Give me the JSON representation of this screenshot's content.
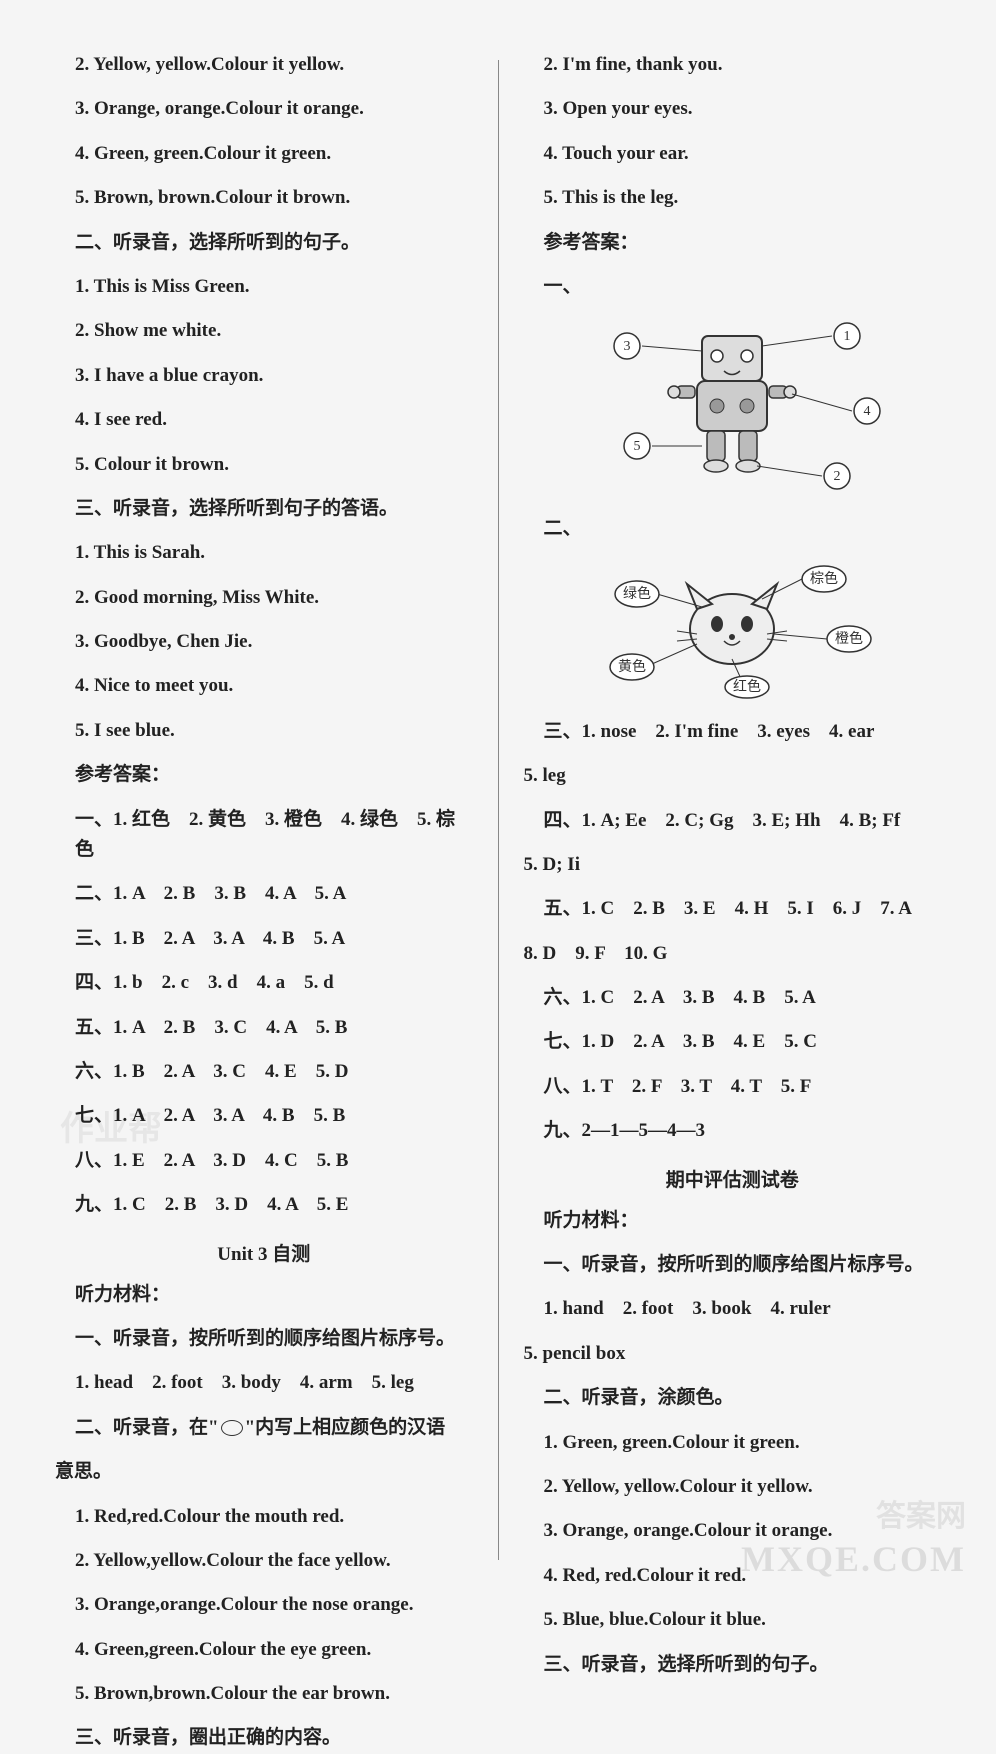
{
  "left": {
    "lines1": [
      "2. Yellow, yellow.Colour it yellow.",
      "3. Orange, orange.Colour it orange.",
      "4. Green, green.Colour it green.",
      "5. Brown, brown.Colour it brown.",
      "二、听录音，选择所听到的句子。",
      "1. This is Miss Green.",
      "2. Show me white.",
      "3. I have a blue crayon.",
      "4. I see red.",
      "5. Colour it brown.",
      "三、听录音，选择所听到句子的答语。",
      "1. This is Sarah.",
      "2. Good morning, Miss White.",
      "3. Goodbye, Chen Jie.",
      "4. Nice to meet you.",
      "5. I see blue."
    ],
    "ans_label": "参考答案：",
    "answers": [
      "一、1. 红色　2. 黄色　3. 橙色　4. 绿色　5. 棕色",
      "二、1. A　2. B　3. B　4. A　5. A",
      "三、1. B　2. A　3. A　4. B　5. A",
      "四、1. b　2. c　3. d　4. a　5. d",
      "五、1. A　2. B　3. C　4. A　5. B",
      "六、1. B　2. A　3. C　4. E　5. D",
      "七、1. A　2. A　3. A　4. B　5. B",
      "八、1. E　2. A　3. D　4. C　5. B",
      "九、1. C　2. B　3. D　4. A　5. E"
    ],
    "unit3_heading": "Unit 3 自测",
    "listening_label": "听力材料：",
    "unit3_lines": [
      "一、听录音，按所听到的顺序给图片标序号。",
      "1. head　2. foot　3. body　4. arm　5. leg"
    ],
    "oval_prefix": "二、听录音，在\"",
    "oval_suffix": "\"内写上相应颜色的汉语",
    "oval_line2": "意思。",
    "unit3_lines2": [
      "1. Red,red.Colour the mouth red.",
      "2. Yellow,yellow.Colour the face yellow.",
      "3. Orange,orange.Colour the nose orange.",
      "4. Green,green.Colour the eye green.",
      "5. Brown,brown.Colour the ear brown.",
      "三、听录音，圈出正确的内容。"
    ]
  },
  "right": {
    "lines1": [
      "2. I'm fine, thank you.",
      "3. Open your eyes.",
      "4. Touch your ear.",
      "5. This is the leg."
    ],
    "ans_label": "参考答案：",
    "sec1": "一、",
    "sec2": "二、",
    "robot": {
      "nums": [
        "1",
        "2",
        "3",
        "4",
        "5"
      ]
    },
    "cat_labels": [
      "绿色",
      "棕色",
      "橙色",
      "黄色",
      "红色"
    ],
    "answers2": [
      "三、1. nose　2. I'm fine　3. eyes　4. ear"
    ],
    "answers2b": "5. leg",
    "answers3": [
      "四、1. A; Ee　2. C; Gg　3. E; Hh　4. B; Ff"
    ],
    "answers3b": "5. D; Ii",
    "answers4": [
      "五、1. C　2. B　3. E　4. H　5. I　6. J　7. A"
    ],
    "answers4b": "8. D　9. F　10. G",
    "answers5": [
      "六、1. C　2. A　3. B　4. B　5. A",
      "七、1. D　2. A　3. B　4. E　5. C",
      "八、1. T　2. F　3. T　4. T　5. F",
      "九、2—1—5—4—3"
    ],
    "midterm_heading": "期中评估测试卷",
    "listening_label": "听力材料：",
    "mid_lines": [
      "一、听录音，按所听到的顺序给图片标序号。",
      "1. hand　2. foot　3. book　4. ruler"
    ],
    "mid_lines_b": "5. pencil box",
    "mid_lines2": [
      "二、听录音，涂颜色。",
      "1. Green, green.Colour it green.",
      "2. Yellow, yellow.Colour it yellow.",
      "3. Orange, orange.Colour it orange.",
      "4. Red, red.Colour it red.",
      "5. Blue, blue.Colour it blue.",
      "三、听录音，选择所听到的句子。"
    ]
  },
  "watermark1": "作业帮",
  "watermark2": "答案网",
  "watermark3": "MXQE.COM"
}
